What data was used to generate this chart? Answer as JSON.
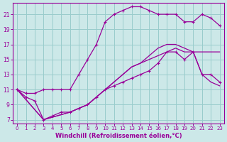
{
  "title": "Windchill (Refroidissement éolien,°C)",
  "bg_color": "#cce8e8",
  "line_color": "#990099",
  "grid_color": "#99cccc",
  "xlim": [
    -0.5,
    23.5
  ],
  "ylim": [
    6.5,
    22.5
  ],
  "xticks": [
    0,
    1,
    2,
    3,
    4,
    5,
    6,
    7,
    8,
    9,
    10,
    11,
    12,
    13,
    14,
    15,
    16,
    17,
    18,
    19,
    20,
    21,
    22,
    23
  ],
  "yticks": [
    7,
    9,
    11,
    13,
    15,
    17,
    19,
    21
  ],
  "curve1_x": [
    0,
    1,
    2,
    3,
    4,
    5,
    6,
    7,
    8,
    9,
    10,
    11,
    12,
    13,
    14,
    15,
    16,
    17,
    18,
    19,
    20,
    21,
    22,
    23
  ],
  "curve1_y": [
    11,
    10.5,
    10.5,
    11,
    11,
    11,
    11,
    13,
    15,
    17,
    20,
    21,
    21.5,
    22,
    22,
    21.5,
    21,
    21,
    21,
    20,
    20,
    21,
    20.5,
    19.5
  ],
  "curve2_x": [
    0,
    1,
    2,
    3,
    4,
    5,
    6,
    7,
    8,
    9,
    10,
    11,
    12,
    13,
    14,
    15,
    16,
    17,
    18,
    19,
    20,
    21,
    22,
    23
  ],
  "curve2_y": [
    11,
    10,
    9.5,
    7,
    7.5,
    8,
    8,
    8.5,
    9,
    10,
    11,
    11.5,
    12,
    12.5,
    13,
    13.5,
    14.5,
    16,
    16,
    15,
    16,
    13,
    13,
    12
  ],
  "curve3a_x": [
    0,
    3,
    6,
    7,
    8,
    9,
    10,
    11,
    12,
    13,
    14,
    15,
    16,
    17,
    18,
    19,
    20,
    21,
    22,
    23
  ],
  "curve3a_y": [
    11,
    7,
    8,
    8.5,
    9,
    10,
    11,
    12,
    13,
    14,
    14.5,
    15,
    15.5,
    16,
    16.5,
    16,
    16,
    16,
    16,
    16
  ],
  "curve3b_x": [
    0,
    3,
    6,
    7,
    8,
    9,
    10,
    11,
    12,
    13,
    14,
    15,
    16,
    17,
    18,
    19,
    20,
    21,
    22,
    23
  ],
  "curve3b_y": [
    11,
    7,
    8,
    8.5,
    9,
    10,
    11,
    12,
    13,
    14,
    14.5,
    15.5,
    16.5,
    17,
    17,
    16.5,
    16,
    13,
    12,
    11.5
  ]
}
